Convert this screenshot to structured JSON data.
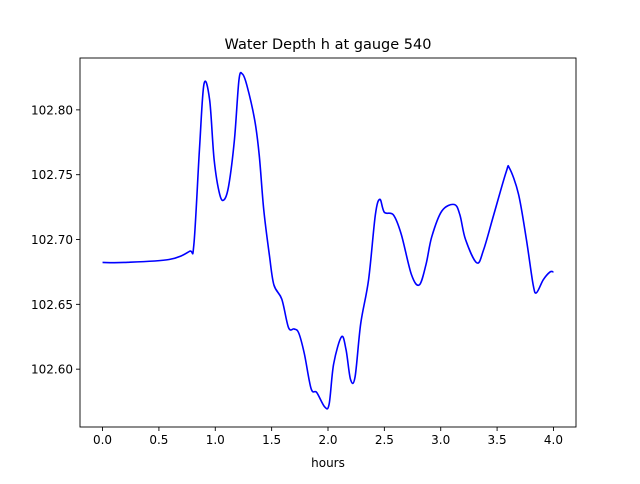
{
  "chart_data": {
    "type": "line",
    "title": "Water Depth h at gauge 540",
    "xlabel": "hours",
    "ylabel": "",
    "xlim": [
      -0.2,
      4.2
    ],
    "ylim": [
      102.5554,
      102.84
    ],
    "xticks": [
      0.0,
      0.5,
      1.0,
      1.5,
      2.0,
      2.5,
      3.0,
      3.5,
      4.0
    ],
    "xtick_labels": [
      "0.0",
      "0.5",
      "1.0",
      "1.5",
      "2.0",
      "2.5",
      "3.0",
      "3.5",
      "4.0"
    ],
    "yticks": [
      102.6,
      102.65,
      102.7,
      102.75,
      102.8
    ],
    "ytick_labels": [
      "102.60",
      "102.65",
      "102.70",
      "102.75",
      "102.80"
    ],
    "grid": false,
    "series": [
      {
        "name": "h",
        "color": "#0000ff",
        "x": [
          0.0,
          0.19,
          0.59,
          0.77,
          0.81,
          0.86,
          0.9,
          0.95,
          0.99,
          1.04,
          1.08,
          1.12,
          1.17,
          1.21,
          1.24,
          1.28,
          1.35,
          1.39,
          1.43,
          1.48,
          1.52,
          1.59,
          1.65,
          1.7,
          1.74,
          1.79,
          1.85,
          1.9,
          1.97,
          2.01,
          2.05,
          2.12,
          2.16,
          2.2,
          2.24,
          2.29,
          2.36,
          2.42,
          2.46,
          2.5,
          2.58,
          2.65,
          2.74,
          2.81,
          2.87,
          2.92,
          3.01,
          3.12,
          3.17,
          3.22,
          3.32,
          3.38,
          3.47,
          3.58,
          3.61,
          3.69,
          3.76,
          3.82,
          3.85,
          3.91,
          3.97,
          4.0
        ],
        "y": [
          102.6823,
          102.6823,
          102.6846,
          102.6908,
          102.696,
          102.77,
          102.82,
          102.8077,
          102.7615,
          102.7346,
          102.7308,
          102.742,
          102.777,
          102.823,
          102.8277,
          102.819,
          102.792,
          102.765,
          102.723,
          102.688,
          102.665,
          102.654,
          102.632,
          102.631,
          102.628,
          102.612,
          102.585,
          102.582,
          102.571,
          102.573,
          102.604,
          102.625,
          102.615,
          102.592,
          102.594,
          102.635,
          102.669,
          102.719,
          102.731,
          102.721,
          102.719,
          102.704,
          102.673,
          102.665,
          102.681,
          102.702,
          102.722,
          102.727,
          102.719,
          102.7,
          102.682,
          102.692,
          102.719,
          102.752,
          102.755,
          102.735,
          102.7,
          102.665,
          102.659,
          102.669,
          102.675,
          102.675
        ]
      }
    ]
  }
}
